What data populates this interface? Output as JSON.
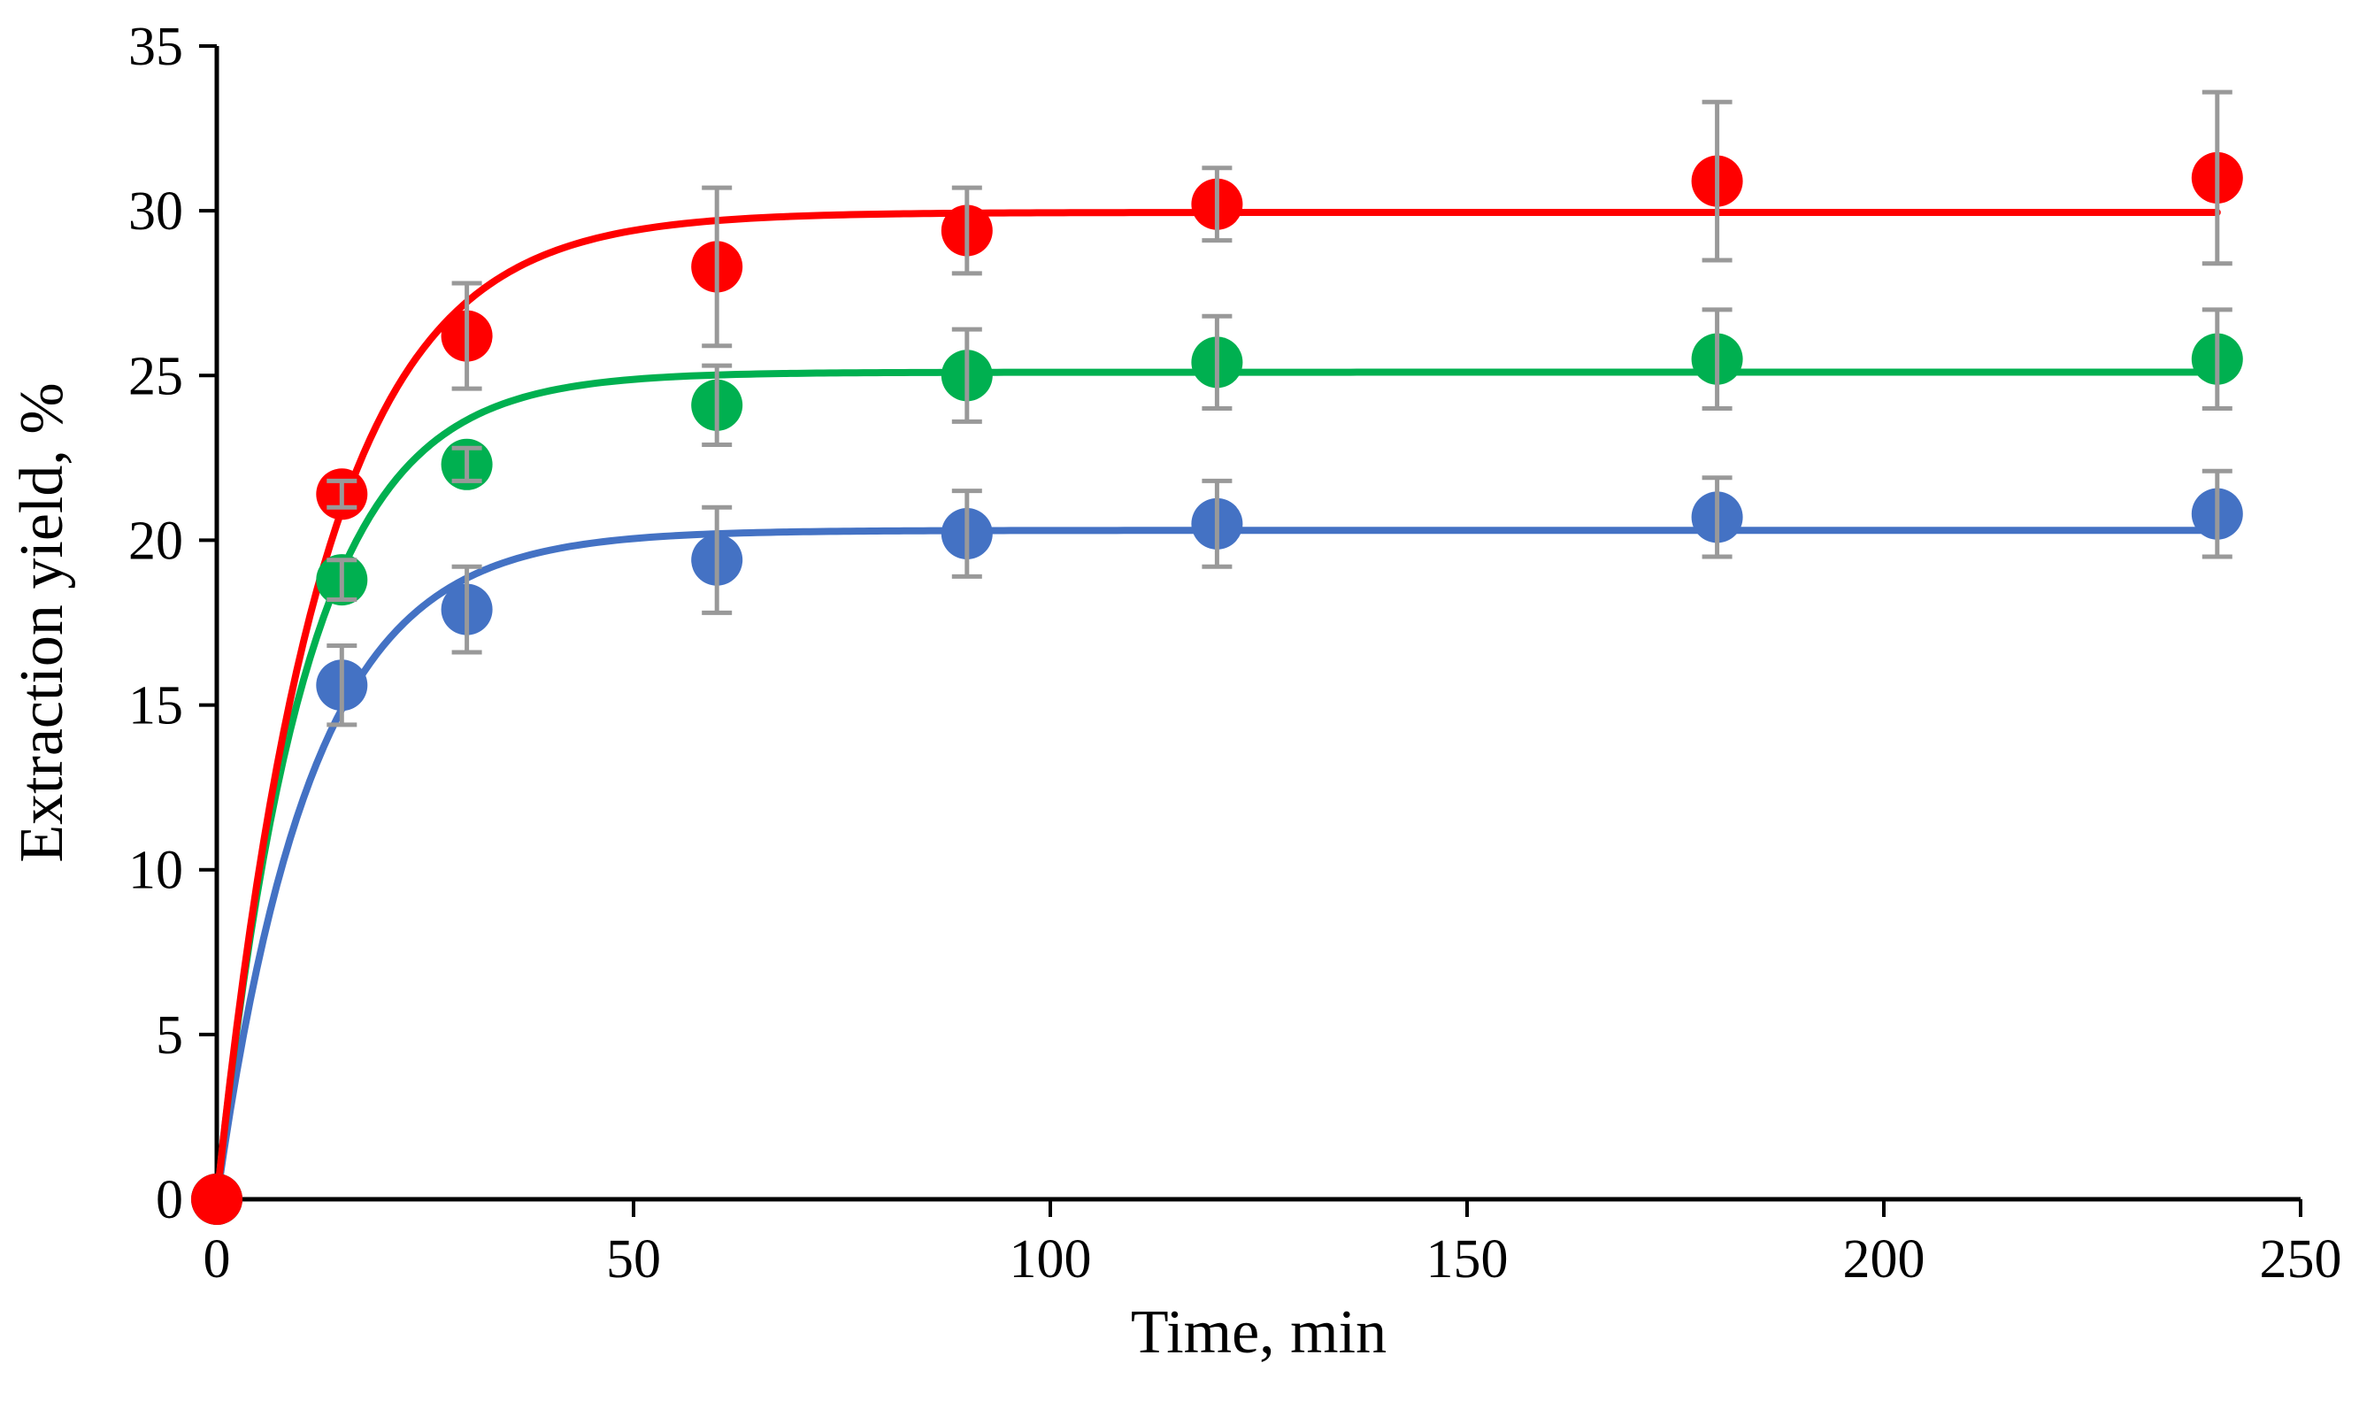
{
  "chart_data": {
    "type": "scatter",
    "title": "",
    "xlabel": "Time, min",
    "ylabel": "Extraction yield, %",
    "xlim": [
      0,
      250
    ],
    "ylim": [
      0,
      35
    ],
    "xticks": [
      0,
      50,
      100,
      150,
      200,
      250
    ],
    "yticks": [
      0,
      5,
      10,
      15,
      20,
      25,
      30,
      35
    ],
    "xtick_labels": [
      "0",
      "50",
      "100",
      "150",
      "200",
      "250"
    ],
    "ytick_labels": [
      "0",
      "5",
      "10",
      "15",
      "20",
      "25",
      "30",
      "35"
    ],
    "grid": false,
    "legend": "none",
    "series": [
      {
        "name": "blue",
        "color": "#4472C4",
        "x": [
          0,
          15,
          30,
          60,
          90,
          120,
          180,
          240
        ],
        "y": [
          0,
          15.6,
          17.9,
          19.4,
          20.2,
          20.5,
          20.7,
          20.8
        ],
        "err": [
          0,
          1.2,
          1.3,
          1.6,
          1.3,
          1.3,
          1.2,
          1.3
        ],
        "fit": {
          "model": "1 - exp",
          "ymax": 20.3,
          "k": 0.088
        }
      },
      {
        "name": "green",
        "color": "#00B050",
        "x": [
          0,
          15,
          30,
          60,
          90,
          120,
          180,
          240
        ],
        "y": [
          0,
          18.8,
          22.3,
          24.1,
          25.0,
          25.4,
          25.5,
          25.5
        ],
        "err": [
          0,
          0.6,
          0.5,
          1.2,
          1.4,
          1.4,
          1.5,
          1.5
        ],
        "fit": {
          "model": "1 - exp",
          "ymax": 25.1,
          "k": 0.095
        }
      },
      {
        "name": "red",
        "color": "#FF0000",
        "x": [
          0,
          15,
          30,
          60,
          90,
          120,
          180,
          240
        ],
        "y": [
          0,
          21.4,
          26.2,
          28.3,
          29.4,
          30.2,
          30.9,
          31.0
        ],
        "err": [
          0,
          0.4,
          1.6,
          2.4,
          1.3,
          1.1,
          2.4,
          2.6
        ],
        "fit": {
          "model": "1 - exp",
          "ymax": 29.95,
          "k": 0.08
        }
      }
    ]
  }
}
